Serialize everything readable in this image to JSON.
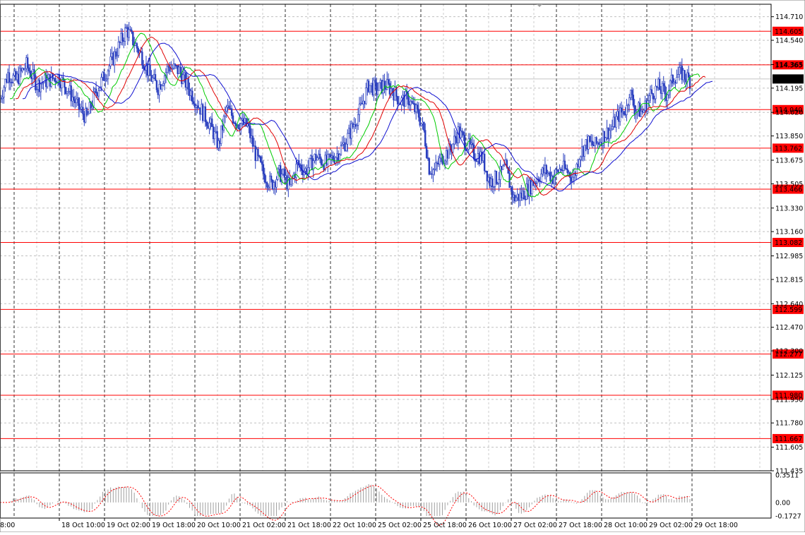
{
  "chart_data": {
    "type": "candlestick",
    "price_axis": {
      "ylim": [
        111.435,
        114.8
      ],
      "tick_labels": [
        "114.710",
        "114.540",
        "114.365",
        "114.195",
        "114.020",
        "113.850",
        "113.675",
        "113.505",
        "113.330",
        "113.160",
        "112.985",
        "112.815",
        "112.640",
        "112.470",
        "112.300",
        "112.125",
        "111.950",
        "111.780",
        "111.605",
        "111.435"
      ]
    },
    "time_axis": {
      "tick_labels": [
        "18 Oct 10:00",
        "19 Oct 02:00",
        "19 Oct 18:00",
        "20 Oct 10:00",
        "21 Oct 02:00",
        "21 Oct 18:00",
        "22 Oct 10:00",
        "25 Oct 02:00",
        "25 Oct 18:00",
        "26 Oct 10:00",
        "27 Oct 02:00",
        "27 Oct 18:00",
        "28 Oct 10:00",
        "29 Oct 02:00",
        "29 Oct 18:00"
      ],
      "leading_fragment": "8:00"
    },
    "current_price": "114.261",
    "horizontal_levels": [
      "114.605",
      "114.363",
      "114.040",
      "113.762",
      "113.466",
      "113.082",
      "112.599",
      "112.277",
      "111.980",
      "111.667"
    ],
    "colors": {
      "candle": "#2a3fbf",
      "level": "#ff0000",
      "ma_fast": "#00cc00",
      "ma_mid": "#e00000",
      "ma_slow": "#1010d0",
      "grid": "#c0c0c0",
      "current_price_bg": "#000000"
    },
    "close_path": [
      [
        0,
        114.12
      ],
      [
        6,
        114.3
      ],
      [
        12,
        114.25
      ],
      [
        20,
        114.36
      ],
      [
        28,
        114.22
      ],
      [
        36,
        114.25
      ],
      [
        44,
        114.28
      ],
      [
        52,
        114.18
      ],
      [
        60,
        114.05
      ],
      [
        66,
        113.98
      ],
      [
        72,
        114.15
      ],
      [
        80,
        114.3
      ],
      [
        88,
        114.45
      ],
      [
        96,
        114.62
      ],
      [
        102,
        114.52
      ],
      [
        108,
        114.42
      ],
      [
        114,
        114.28
      ],
      [
        120,
        114.2
      ],
      [
        128,
        114.35
      ],
      [
        136,
        114.32
      ],
      [
        144,
        114.18
      ],
      [
        152,
        114.05
      ],
      [
        160,
        113.92
      ],
      [
        166,
        113.78
      ],
      [
        172,
        114.05
      ],
      [
        180,
        113.95
      ],
      [
        188,
        113.92
      ],
      [
        194,
        113.72
      ],
      [
        200,
        113.58
      ],
      [
        206,
        113.5
      ],
      [
        212,
        113.58
      ],
      [
        216,
        113.55
      ],
      [
        220,
        113.48
      ],
      [
        226,
        113.65
      ],
      [
        232,
        113.6
      ],
      [
        240,
        113.7
      ],
      [
        248,
        113.65
      ],
      [
        256,
        113.72
      ],
      [
        262,
        113.8
      ],
      [
        268,
        113.92
      ],
      [
        274,
        114.05
      ],
      [
        280,
        114.22
      ],
      [
        286,
        114.18
      ],
      [
        292,
        114.22
      ],
      [
        298,
        114.18
      ],
      [
        304,
        114.1
      ],
      [
        310,
        114.12
      ],
      [
        314,
        114.05
      ],
      [
        318,
        114.0
      ],
      [
        322,
        113.88
      ],
      [
        326,
        113.62
      ],
      [
        330,
        113.6
      ],
      [
        336,
        113.7
      ],
      [
        342,
        113.75
      ],
      [
        348,
        113.88
      ],
      [
        354,
        113.8
      ],
      [
        360,
        113.72
      ],
      [
        366,
        113.7
      ],
      [
        372,
        113.52
      ],
      [
        378,
        113.55
      ],
      [
        384,
        113.62
      ],
      [
        390,
        113.4
      ],
      [
        396,
        113.42
      ],
      [
        402,
        113.48
      ],
      [
        408,
        113.55
      ],
      [
        414,
        113.6
      ],
      [
        420,
        113.55
      ],
      [
        426,
        113.62
      ],
      [
        430,
        113.6
      ],
      [
        436,
        113.55
      ],
      [
        440,
        113.72
      ],
      [
        446,
        113.8
      ],
      [
        452,
        113.78
      ],
      [
        458,
        113.85
      ],
      [
        464,
        113.9
      ],
      [
        470,
        114.0
      ],
      [
        476,
        114.05
      ],
      [
        478,
        114.18
      ],
      [
        482,
        114.05
      ],
      [
        488,
        114.02
      ],
      [
        494,
        114.15
      ],
      [
        500,
        114.2
      ],
      [
        506,
        114.15
      ],
      [
        512,
        114.28
      ],
      [
        518,
        114.3
      ],
      [
        524,
        114.25
      ]
    ],
    "oscillator": {
      "tick_labels": [
        "0.3511",
        "0.00",
        "-0.1727"
      ]
    }
  }
}
